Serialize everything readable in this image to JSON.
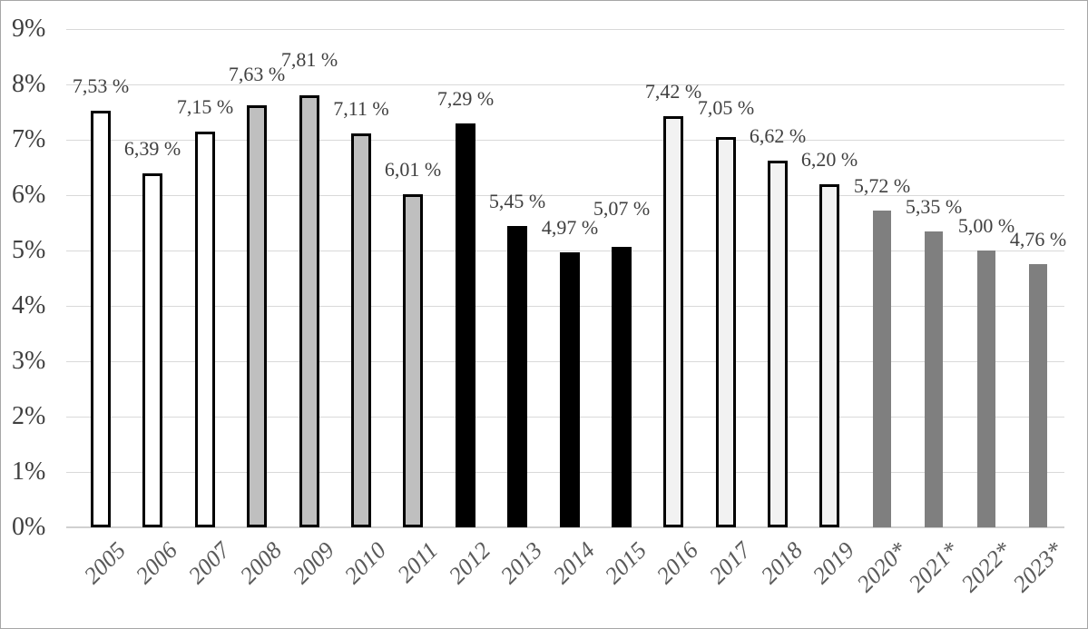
{
  "chart_data": {
    "type": "bar",
    "title": "",
    "categories": [
      "2005",
      "2006",
      "2007",
      "2008",
      "2009",
      "2010",
      "2011",
      "2012",
      "2013",
      "2014",
      "2015",
      "2016",
      "2017",
      "2018",
      "2019",
      "2020*",
      "2021*",
      "2022*",
      "2023*"
    ],
    "values": [
      7.53,
      6.39,
      7.15,
      7.63,
      7.81,
      7.11,
      6.01,
      7.29,
      5.45,
      4.97,
      5.07,
      7.42,
      7.05,
      6.62,
      6.2,
      5.72,
      5.35,
      5.0,
      4.76
    ],
    "data_labels": [
      "7,53 %",
      "6,39 %",
      "7,15 %",
      "7,63 %",
      "7,81 %",
      "7,11 %",
      "6,01 %",
      "7,29 %",
      "5,45 %",
      "4,97 %",
      "5,07 %",
      "7,42 %",
      "7,05 %",
      "6,62 %",
      "6,20 %",
      "5,72 %",
      "5,35 %",
      "5,00 %",
      "4,76 %"
    ],
    "groups": [
      "white",
      "white",
      "white",
      "silver",
      "silver",
      "silver",
      "silver",
      "black",
      "black",
      "black",
      "black",
      "light",
      "light",
      "light",
      "light",
      "dark",
      "dark",
      "dark",
      "dark"
    ],
    "group_styles": {
      "white": {
        "fill": "#ffffff",
        "stroke": "#000000"
      },
      "silver": {
        "fill": "#bfbfbf",
        "stroke": "#000000"
      },
      "black": {
        "fill": "#000000",
        "stroke": "#000000"
      },
      "light": {
        "fill": "#f2f2f2",
        "stroke": "#000000"
      },
      "dark": {
        "fill": "#7f7f7f",
        "stroke": "none"
      }
    },
    "y_ticks": [
      "0%",
      "1%",
      "2%",
      "3%",
      "4%",
      "5%",
      "6%",
      "7%",
      "8%",
      "9%"
    ],
    "ylim": [
      0,
      9
    ],
    "xlabel": "",
    "ylabel": "",
    "grid": true,
    "legend_position": "none",
    "label_dy": [
      0,
      0,
      0,
      -7,
      -12,
      0,
      0,
      0,
      0,
      0,
      -15,
      0,
      -5,
      0,
      0,
      0,
      0,
      0,
      0
    ]
  },
  "colors": {
    "gridline": "#d9d9d9",
    "axis_line": "#d0d0d0",
    "tick_label": "#3f3f3f",
    "data_label": "#3f3f3f",
    "category_label": "#595959",
    "frame_border": "#a6a6a6",
    "background": "#ffffff"
  }
}
